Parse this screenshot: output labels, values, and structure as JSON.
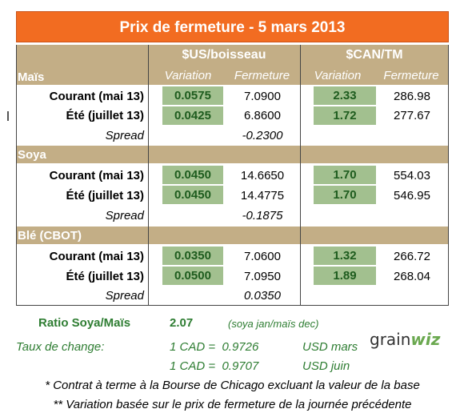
{
  "title": "Prix de fermeture - 5 mars 2013",
  "headers": {
    "usd": "$US/boisseau",
    "cad": "$CAN/TM",
    "variation": "Variation",
    "fermeture": "Fermeture"
  },
  "sections": [
    {
      "name": "Maïs",
      "rows": [
        {
          "label": "Courant (mai 13)",
          "usd_var": "0.0575",
          "usd_close": "7.0900",
          "cad_var": "2.33",
          "cad_close": "286.98"
        },
        {
          "label": "Été (juillet 13)",
          "usd_var": "0.0425",
          "usd_close": "6.8600",
          "cad_var": "1.72",
          "cad_close": "277.67"
        }
      ],
      "spread_label": "Spread",
      "spread_value": "-0.2300"
    },
    {
      "name": "Soya",
      "rows": [
        {
          "label": "Courant (mai 13)",
          "usd_var": "0.0450",
          "usd_close": "14.6650",
          "cad_var": "1.70",
          "cad_close": "554.03"
        },
        {
          "label": "Été (juillet 13)",
          "usd_var": "0.0450",
          "usd_close": "14.4775",
          "cad_var": "1.70",
          "cad_close": "546.95"
        }
      ],
      "spread_label": "Spread",
      "spread_value": "-0.1875"
    },
    {
      "name": "Blé (CBOT)",
      "rows": [
        {
          "label": "Courant (mai 13)",
          "usd_var": "0.0350",
          "usd_close": "7.0600",
          "cad_var": "1.32",
          "cad_close": "266.72"
        },
        {
          "label": "Été (juillet 13)",
          "usd_var": "0.0500",
          "usd_close": "7.0950",
          "cad_var": "1.89",
          "cad_close": "268.04"
        }
      ],
      "spread_label": "Spread",
      "spread_value": "0.0350"
    }
  ],
  "footer": {
    "ratio_label": "Ratio Soya/Maïs",
    "ratio_value": "2.07",
    "ratio_note": "(soya jan/maïs dec)",
    "exchange_label": "Taux de change:",
    "rate1": "1 CAD =  0.9726",
    "rate1_unit": "USD mars",
    "rate2": "1 CAD =  0.9707",
    "rate2_unit": "USD juin",
    "note1": "* Contrat à terme à la Bourse de Chicago excluant la valeur de la base",
    "note2": "** Variation basée sur le prix de fermeture de la journée précédente"
  },
  "logo": {
    "part1": "grain",
    "part2": "wiz"
  },
  "colors": {
    "title_bg": "#f26c21",
    "section_bg": "#c3ae86",
    "cell_green": "#a2c08f",
    "value_green": "#1e5c1e"
  }
}
